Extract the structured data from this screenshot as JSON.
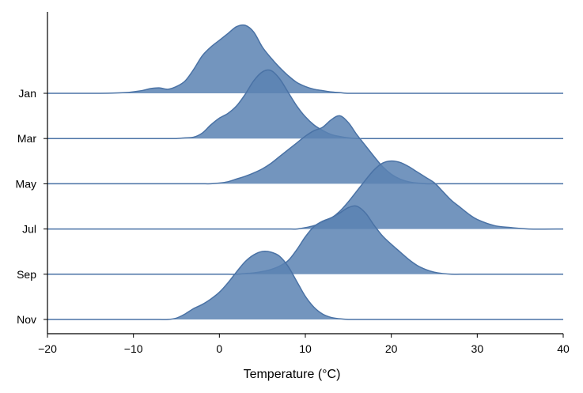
{
  "chart_data": {
    "type": "area",
    "title": "",
    "xlabel": "Temperature (°C)",
    "ylabel": "",
    "xlim": [
      -20,
      40
    ],
    "xticks": [
      -20,
      -10,
      0,
      10,
      20,
      30,
      40
    ],
    "xtick_labels": [
      "−20",
      "−10",
      "0",
      "10",
      "20",
      "30",
      "40"
    ],
    "categories": [
      "Jan",
      "Mar",
      "May",
      "Jul",
      "Sep",
      "Nov"
    ],
    "grid": false,
    "legend": "none",
    "fill_color": "#5b83b3",
    "line_color": "#4a72a5",
    "x": [
      -20,
      -14,
      -11,
      -9,
      -8,
      -7,
      -6,
      -5,
      -4,
      -3,
      -2,
      -1,
      0,
      1,
      2,
      3,
      4,
      5,
      6,
      7,
      8,
      9,
      10,
      11,
      12,
      13,
      14,
      15,
      16,
      17,
      18,
      19,
      20,
      21,
      22,
      23,
      24,
      25,
      26,
      27,
      28,
      29,
      30,
      32,
      34,
      36,
      40
    ],
    "series": [
      {
        "name": "Jan",
        "values": [
          0.0,
          0.0,
          0.01,
          0.04,
          0.07,
          0.08,
          0.06,
          0.1,
          0.18,
          0.35,
          0.55,
          0.68,
          0.78,
          0.88,
          0.98,
          1.0,
          0.9,
          0.68,
          0.52,
          0.38,
          0.26,
          0.16,
          0.1,
          0.06,
          0.04,
          0.02,
          0.01,
          0.0,
          0.0,
          0.0,
          0.0,
          0.0,
          0.0,
          0.0,
          0.0,
          0.0,
          0.0,
          0.0,
          0.0,
          0.0,
          0.0,
          0.0,
          0.0,
          0.0,
          0.0,
          0.0,
          0.0
        ]
      },
      {
        "name": "Mar",
        "values": [
          0.0,
          0.0,
          0.0,
          0.0,
          0.0,
          0.0,
          0.0,
          0.0,
          0.01,
          0.02,
          0.08,
          0.2,
          0.3,
          0.37,
          0.48,
          0.65,
          0.85,
          0.98,
          1.0,
          0.88,
          0.68,
          0.48,
          0.32,
          0.2,
          0.12,
          0.06,
          0.03,
          0.01,
          0.0,
          0.0,
          0.0,
          0.0,
          0.0,
          0.0,
          0.0,
          0.0,
          0.0,
          0.0,
          0.0,
          0.0,
          0.0,
          0.0,
          0.0,
          0.0,
          0.0,
          0.0,
          0.0
        ]
      },
      {
        "name": "May",
        "values": [
          0.0,
          0.0,
          0.0,
          0.0,
          0.0,
          0.0,
          0.0,
          0.0,
          0.0,
          0.0,
          0.0,
          0.0,
          0.01,
          0.03,
          0.07,
          0.11,
          0.16,
          0.22,
          0.3,
          0.4,
          0.5,
          0.6,
          0.7,
          0.78,
          0.83,
          0.94,
          1.0,
          0.9,
          0.72,
          0.56,
          0.4,
          0.25,
          0.14,
          0.07,
          0.03,
          0.01,
          0.0,
          0.0,
          0.0,
          0.0,
          0.0,
          0.0,
          0.0,
          0.0,
          0.0,
          0.0,
          0.0
        ]
      },
      {
        "name": "Jul",
        "values": [
          0.0,
          0.0,
          0.0,
          0.0,
          0.0,
          0.0,
          0.0,
          0.0,
          0.0,
          0.0,
          0.0,
          0.0,
          0.0,
          0.0,
          0.0,
          0.0,
          0.0,
          0.0,
          0.0,
          0.0,
          0.0,
          0.0,
          0.02,
          0.05,
          0.1,
          0.16,
          0.26,
          0.4,
          0.56,
          0.72,
          0.87,
          0.97,
          1.0,
          0.98,
          0.92,
          0.84,
          0.76,
          0.68,
          0.55,
          0.42,
          0.32,
          0.22,
          0.14,
          0.05,
          0.02,
          0.0,
          0.0
        ]
      },
      {
        "name": "Sep",
        "values": [
          0.0,
          0.0,
          0.0,
          0.0,
          0.0,
          0.0,
          0.0,
          0.0,
          0.0,
          0.0,
          0.0,
          0.0,
          0.0,
          0.0,
          0.0,
          0.01,
          0.02,
          0.04,
          0.07,
          0.12,
          0.2,
          0.36,
          0.55,
          0.7,
          0.78,
          0.83,
          0.9,
          0.98,
          1.0,
          0.9,
          0.72,
          0.56,
          0.44,
          0.33,
          0.22,
          0.13,
          0.07,
          0.03,
          0.01,
          0.0,
          0.0,
          0.0,
          0.0,
          0.0,
          0.0,
          0.0,
          0.0
        ]
      },
      {
        "name": "Nov",
        "values": [
          0.0,
          0.0,
          0.0,
          0.0,
          0.0,
          0.0,
          0.0,
          0.02,
          0.08,
          0.16,
          0.22,
          0.3,
          0.4,
          0.54,
          0.7,
          0.85,
          0.95,
          1.0,
          0.99,
          0.93,
          0.78,
          0.56,
          0.34,
          0.18,
          0.08,
          0.03,
          0.01,
          0.0,
          0.0,
          0.0,
          0.0,
          0.0,
          0.0,
          0.0,
          0.0,
          0.0,
          0.0,
          0.0,
          0.0,
          0.0,
          0.0,
          0.0,
          0.0,
          0.0,
          0.0,
          0.0,
          0.0
        ]
      }
    ]
  }
}
